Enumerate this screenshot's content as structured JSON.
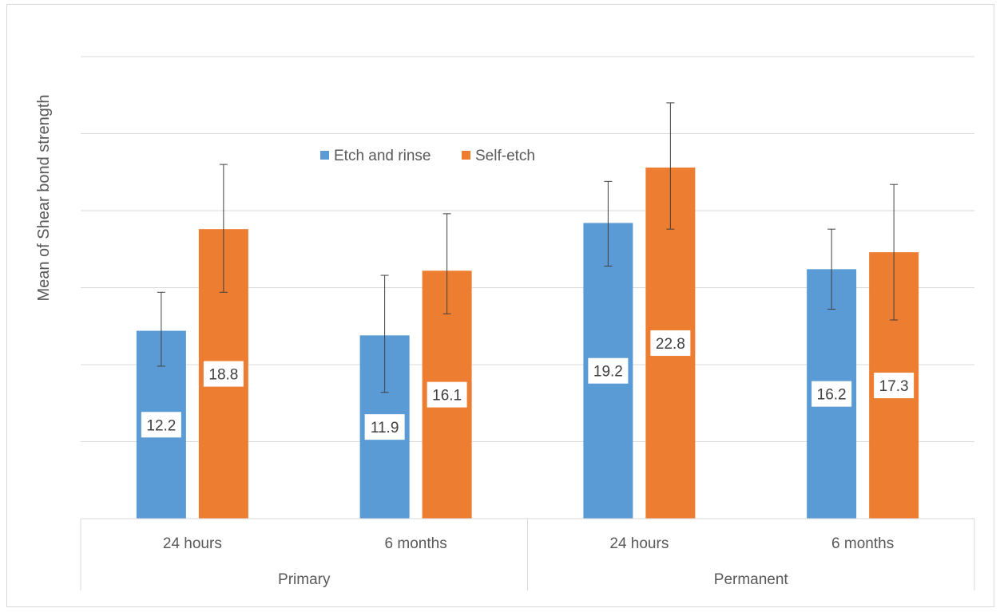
{
  "chart_data": {
    "type": "bar",
    "title": "",
    "ylabel": "Mean of Shear bond strength",
    "xlabel": "",
    "ylim": [
      0,
      30
    ],
    "grid": true,
    "legend_position": "top-center",
    "groups": [
      {
        "label": "Primary",
        "categories": [
          "24 hours",
          "6 months"
        ]
      },
      {
        "label": "Permanent",
        "categories": [
          "24 hours",
          "6 months"
        ]
      }
    ],
    "categories": [
      "24 hours",
      "6 months",
      "24 hours",
      "6 months"
    ],
    "series": [
      {
        "name": "Etch and rinse",
        "color": "#5b9bd5",
        "values": [
          12.2,
          11.9,
          19.2,
          16.2
        ],
        "error_low": [
          9.9,
          8.2,
          16.4,
          13.6
        ],
        "error_high": [
          14.7,
          15.8,
          21.9,
          18.8
        ]
      },
      {
        "name": "Self-etch",
        "color": "#ed7d31",
        "values": [
          18.8,
          16.1,
          22.8,
          17.3
        ],
        "error_low": [
          14.7,
          13.3,
          18.8,
          12.9
        ],
        "error_high": [
          23.0,
          19.8,
          27.0,
          21.7
        ]
      }
    ]
  }
}
